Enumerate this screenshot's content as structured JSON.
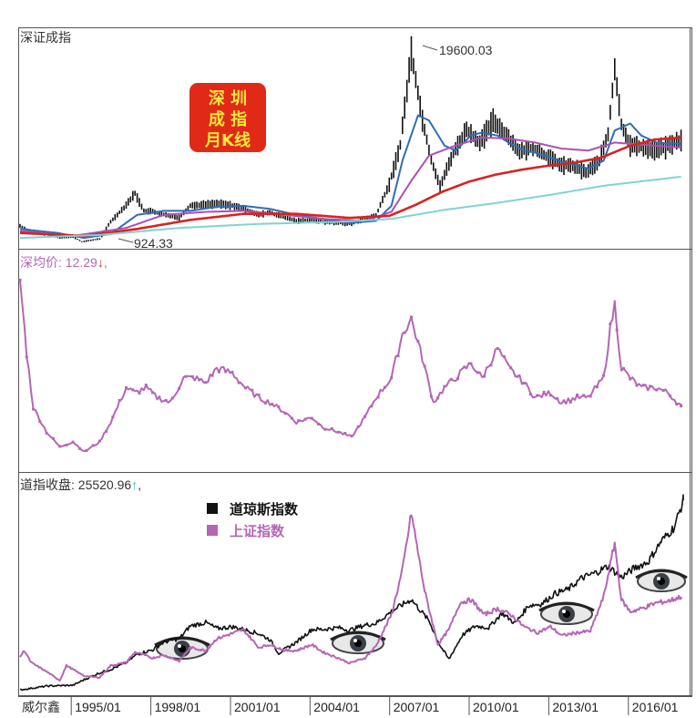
{
  "chart_data": [
    {
      "type": "line",
      "title": "深证成指",
      "badge": [
        "深 圳",
        "成 指",
        "月K线"
      ],
      "annotations": [
        {
          "text": "19600.03",
          "x": "2007/10",
          "y": 19600.03
        },
        {
          "text": "924.33",
          "x": "1995/05",
          "y": 924.33
        }
      ],
      "ylim": [
        500,
        21000
      ],
      "series": [
        {
          "id": "kline",
          "color": "#111111",
          "x": [
            "1993/01",
            "1993/06",
            "1994/01",
            "1994/07",
            "1995/01",
            "1995/05",
            "1996/01",
            "1996/06",
            "1996/12",
            "1997/05",
            "1997/09",
            "1998/01",
            "1998/06",
            "1999/01",
            "1999/06",
            "2000/01",
            "2000/06",
            "2001/01",
            "2001/06",
            "2002/01",
            "2002/06",
            "2003/01",
            "2003/06",
            "2004/01",
            "2004/06",
            "2005/01",
            "2005/07",
            "2006/01",
            "2006/06",
            "2006/12",
            "2007/05",
            "2007/10",
            "2008/03",
            "2008/07",
            "2008/11",
            "2009/05",
            "2009/11",
            "2010/05",
            "2010/11",
            "2011/05",
            "2011/11",
            "2012/05",
            "2012/11",
            "2013/05",
            "2013/11",
            "2014/05",
            "2014/11",
            "2015/03",
            "2015/06",
            "2015/09",
            "2016/01",
            "2016/06",
            "2016/12",
            "2017/06",
            "2017/12"
          ],
          "y": [
            2500,
            1900,
            1700,
            1300,
            1400,
            924,
            1200,
            2900,
            4300,
            5700,
            4000,
            3900,
            3600,
            3300,
            4500,
            4600,
            4700,
            4500,
            4200,
            3600,
            3800,
            3300,
            3000,
            3100,
            2900,
            2800,
            2700,
            3200,
            3500,
            6600,
            10500,
            19600,
            13000,
            9000,
            6400,
            9700,
            12000,
            10700,
            12900,
            11500,
            9800,
            10200,
            9400,
            8600,
            8400,
            7800,
            8900,
            11500,
            18000,
            12500,
            10500,
            10300,
            10000,
            10400,
            11000
          ]
        },
        {
          "id": "ma_blue",
          "color": "#2f6db5",
          "x": [
            "1993/01",
            "1994/06",
            "1995/06",
            "1996/06",
            "1997/06",
            "1998/06",
            "1999/06",
            "2000/06",
            "2001/06",
            "2002/06",
            "2003/06",
            "2004/06",
            "2005/06",
            "2006/06",
            "2007/01",
            "2007/06",
            "2008/01",
            "2008/06",
            "2009/01",
            "2009/06",
            "2010/01",
            "2010/06",
            "2011/01",
            "2011/06",
            "2012/01",
            "2012/06",
            "2013/01",
            "2013/06",
            "2014/01",
            "2014/06",
            "2015/01",
            "2015/06",
            "2016/01",
            "2016/06",
            "2017/01",
            "2017/06",
            "2017/12"
          ],
          "y": [
            2200,
            1800,
            1300,
            1700,
            3600,
            4000,
            4000,
            4400,
            4500,
            4200,
            3600,
            3200,
            2800,
            3000,
            4500,
            9000,
            13500,
            13000,
            10500,
            10000,
            11500,
            11800,
            11500,
            10800,
            10000,
            9800,
            9300,
            8900,
            8500,
            8200,
            9000,
            12000,
            12700,
            11500,
            10800,
            10700,
            10700
          ]
        },
        {
          "id": "ma_purple",
          "color": "#b04fb0",
          "x": [
            "1993/01",
            "1995/01",
            "1997/01",
            "1998/06",
            "2000/01",
            "2001/06",
            "2003/01",
            "2004/06",
            "2006/01",
            "2007/01",
            "2007/10",
            "2008/06",
            "2009/06",
            "2010/06",
            "2011/06",
            "2012/06",
            "2013/06",
            "2014/06",
            "2015/06",
            "2016/06",
            "2017/06",
            "2017/12"
          ],
          "y": [
            2000,
            1500,
            2300,
            3600,
            3900,
            4000,
            3600,
            3200,
            3000,
            3900,
            7000,
            9500,
            10500,
            11300,
            11200,
            10800,
            10200,
            10000,
            10800,
            10600,
            10400,
            10300
          ]
        },
        {
          "id": "ma_red",
          "color": "#d92222",
          "x": [
            "1993/01",
            "1995/06",
            "1997/06",
            "1999/06",
            "2001/06",
            "2003/06",
            "2005/06",
            "2006/12",
            "2007/12",
            "2008/12",
            "2009/12",
            "2010/12",
            "2011/12",
            "2012/12",
            "2013/12",
            "2014/12",
            "2015/12",
            "2016/12",
            "2017/12"
          ],
          "y": [
            1800,
            1500,
            2200,
            3100,
            3700,
            3700,
            3300,
            3500,
            4600,
            5900,
            6900,
            7600,
            8100,
            8500,
            8800,
            9300,
            10400,
            11100,
            11300
          ]
        },
        {
          "id": "ma_cyan",
          "color": "#7fd3d3",
          "x": [
            "1993/01",
            "1996/01",
            "1999/01",
            "2002/01",
            "2005/01",
            "2007/01",
            "2009/01",
            "2011/01",
            "2013/01",
            "2015/01",
            "2017/12"
          ],
          "y": [
            1300,
            1600,
            2300,
            2700,
            2900,
            3200,
            4100,
            4800,
            5600,
            6500,
            7400
          ]
        }
      ]
    },
    {
      "type": "line",
      "title": "深均价",
      "value_text": "12.29",
      "value_arrow": "↓",
      "value_suffix": ",",
      "ylim": [
        0,
        40
      ],
      "series": [
        {
          "id": "avg_price",
          "color": "#b466b4",
          "x": [
            "1993/01",
            "1993/04",
            "1993/07",
            "1994/01",
            "1994/07",
            "1995/01",
            "1995/06",
            "1996/01",
            "1996/06",
            "1997/01",
            "1997/05",
            "1997/10",
            "1998/03",
            "1998/09",
            "1999/03",
            "1999/08",
            "2000/01",
            "2000/06",
            "2001/01",
            "2001/07",
            "2002/01",
            "2002/06",
            "2003/01",
            "2003/06",
            "2004/01",
            "2004/06",
            "2005/01",
            "2005/07",
            "2006/01",
            "2006/06",
            "2007/01",
            "2007/06",
            "2007/10",
            "2008/03",
            "2008/08",
            "2009/01",
            "2009/06",
            "2010/01",
            "2010/06",
            "2011/01",
            "2011/06",
            "2012/01",
            "2012/06",
            "2013/01",
            "2013/06",
            "2014/01",
            "2014/06",
            "2015/01",
            "2015/04",
            "2015/06",
            "2015/09",
            "2016/01",
            "2016/06",
            "2017/01",
            "2017/06",
            "2017/12"
          ],
          "y": [
            38,
            23,
            12,
            7,
            4,
            5,
            3,
            5,
            9,
            16,
            15,
            16,
            14,
            13,
            18,
            18,
            17,
            20,
            19,
            16,
            14,
            13,
            11,
            9,
            10,
            8,
            7,
            6,
            10,
            14,
            18,
            27,
            30,
            22,
            13,
            16,
            18,
            21,
            18,
            24,
            20,
            17,
            14,
            15,
            13,
            14,
            14,
            18,
            28,
            33,
            20,
            18,
            16,
            16,
            15,
            12.29
          ]
        }
      ]
    },
    {
      "type": "line",
      "title": "道指收盘",
      "value_text": "25520.96",
      "value_arrow": "↑",
      "value_suffix": ",",
      "footer_label": "威尔鑫",
      "categories": [
        "1995/01",
        "1998/01",
        "2001/01",
        "2004/01",
        "2007/01",
        "2010/01",
        "2013/01",
        "2016/01"
      ],
      "legend": [
        {
          "label": "道琼斯指数",
          "color": "#111111"
        },
        {
          "label": "上证指数",
          "color": "#b466b4"
        }
      ],
      "series": [
        {
          "id": "dow",
          "name": "道琼斯指数",
          "color": "#111111",
          "ylim": [
            3000,
            26500
          ],
          "x": [
            "1993/01",
            "1994/01",
            "1995/01",
            "1995/06",
            "1996/01",
            "1996/06",
            "1997/01",
            "1997/06",
            "1998/01",
            "1998/06",
            "1999/01",
            "1999/06",
            "2000/01",
            "2000/06",
            "2001/01",
            "2001/06",
            "2002/01",
            "2002/06",
            "2002/10",
            "2003/06",
            "2004/01",
            "2004/06",
            "2005/01",
            "2005/06",
            "2006/01",
            "2006/06",
            "2007/01",
            "2007/06",
            "2007/10",
            "2008/06",
            "2008/11",
            "2009/03",
            "2009/09",
            "2010/03",
            "2010/09",
            "2011/03",
            "2011/09",
            "2012/03",
            "2012/09",
            "2013/03",
            "2013/09",
            "2014/03",
            "2014/09",
            "2015/03",
            "2015/09",
            "2016/03",
            "2016/09",
            "2017/03",
            "2017/09",
            "2018/01"
          ],
          "y": [
            3300,
            3750,
            3850,
            4500,
            5300,
            5700,
            6500,
            7500,
            8000,
            8900,
            9300,
            10800,
            11200,
            10500,
            10700,
            10400,
            9900,
            9200,
            7600,
            8900,
            10400,
            10400,
            10600,
            10300,
            10900,
            11100,
            12500,
            13300,
            13900,
            11400,
            8500,
            6900,
            9700,
            10800,
            10600,
            12300,
            11100,
            13200,
            13400,
            14600,
            15100,
            16400,
            17000,
            17800,
            16500,
            17600,
            18300,
            20700,
            22400,
            25520
          ]
        },
        {
          "id": "sse",
          "name": "上证指数",
          "color": "#b466b4",
          "ylim": [
            100,
            6800
          ],
          "x": [
            "1993/01",
            "1993/03",
            "1993/06",
            "1994/01",
            "1994/07",
            "1994/10",
            "1995/06",
            "1996/01",
            "1996/06",
            "1997/01",
            "1997/05",
            "1998/01",
            "1998/06",
            "1999/01",
            "1999/06",
            "2000/01",
            "2000/06",
            "2001/06",
            "2002/01",
            "2002/06",
            "2003/01",
            "2003/06",
            "2004/01",
            "2004/06",
            "2005/01",
            "2005/06",
            "2006/01",
            "2006/06",
            "2007/01",
            "2007/06",
            "2007/10",
            "2008/04",
            "2008/10",
            "2009/03",
            "2009/08",
            "2010/01",
            "2010/07",
            "2011/01",
            "2011/07",
            "2012/01",
            "2012/07",
            "2013/01",
            "2013/06",
            "2014/01",
            "2014/07",
            "2015/01",
            "2015/06",
            "2015/09",
            "2016/01",
            "2016/06",
            "2017/01",
            "2017/06",
            "2017/12"
          ],
          "y": [
            1300,
            1500,
            1100,
            800,
            500,
            1000,
            650,
            600,
            1000,
            1100,
            1450,
            1250,
            1350,
            1150,
            1600,
            1500,
            1900,
            2200,
            1600,
            1700,
            1500,
            1500,
            1700,
            1450,
            1250,
            1080,
            1250,
            1650,
            2700,
            4200,
            6100,
            3500,
            1700,
            2200,
            3100,
            3200,
            2700,
            2900,
            2700,
            2300,
            2100,
            2300,
            2000,
            2100,
            2150,
            3300,
            5100,
            3200,
            2800,
            2900,
            3100,
            3150,
            3300
          ]
        }
      ]
    }
  ]
}
